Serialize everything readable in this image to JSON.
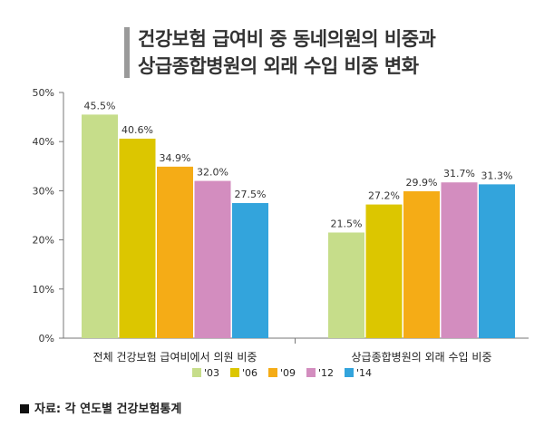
{
  "chart_data": {
    "type": "bar",
    "title_lines": [
      "건강보험 급여비 중 동네의원의 비중과",
      "상급종합병원의 외래 수입 비중 변화"
    ],
    "categories": [
      "전체 건강보험 급여비에서 의원 비중",
      "상급종합병원의 외래 수입 비중"
    ],
    "series": [
      {
        "name": "'03",
        "color": "#c6dd8a",
        "values": [
          45.5,
          21.5
        ],
        "labels": [
          "45.5%",
          "21.5%"
        ]
      },
      {
        "name": "'06",
        "color": "#dcc600",
        "values": [
          40.6,
          27.2
        ],
        "labels": [
          "40.6%",
          "27.2%"
        ]
      },
      {
        "name": "'09",
        "color": "#f5ac16",
        "values": [
          34.9,
          29.9
        ],
        "labels": [
          "34.9%",
          "29.9%"
        ]
      },
      {
        "name": "'12",
        "color": "#d38dbf",
        "values": [
          32.0,
          31.7
        ],
        "labels": [
          "32.0%",
          "31.7%"
        ]
      },
      {
        "name": "'14",
        "color": "#33a4dc",
        "values": [
          27.5,
          31.3
        ],
        "labels": [
          "27.5%",
          "31.3%"
        ]
      }
    ],
    "yticks": [
      0,
      10,
      20,
      30,
      40,
      50
    ],
    "ytick_labels": [
      "0%",
      "10%",
      "20%",
      "30%",
      "40%",
      "50%"
    ],
    "ylim": [
      0,
      50
    ],
    "grid": false,
    "legend": "bottom"
  },
  "source": "자료: 각 연도별 건강보험통계"
}
